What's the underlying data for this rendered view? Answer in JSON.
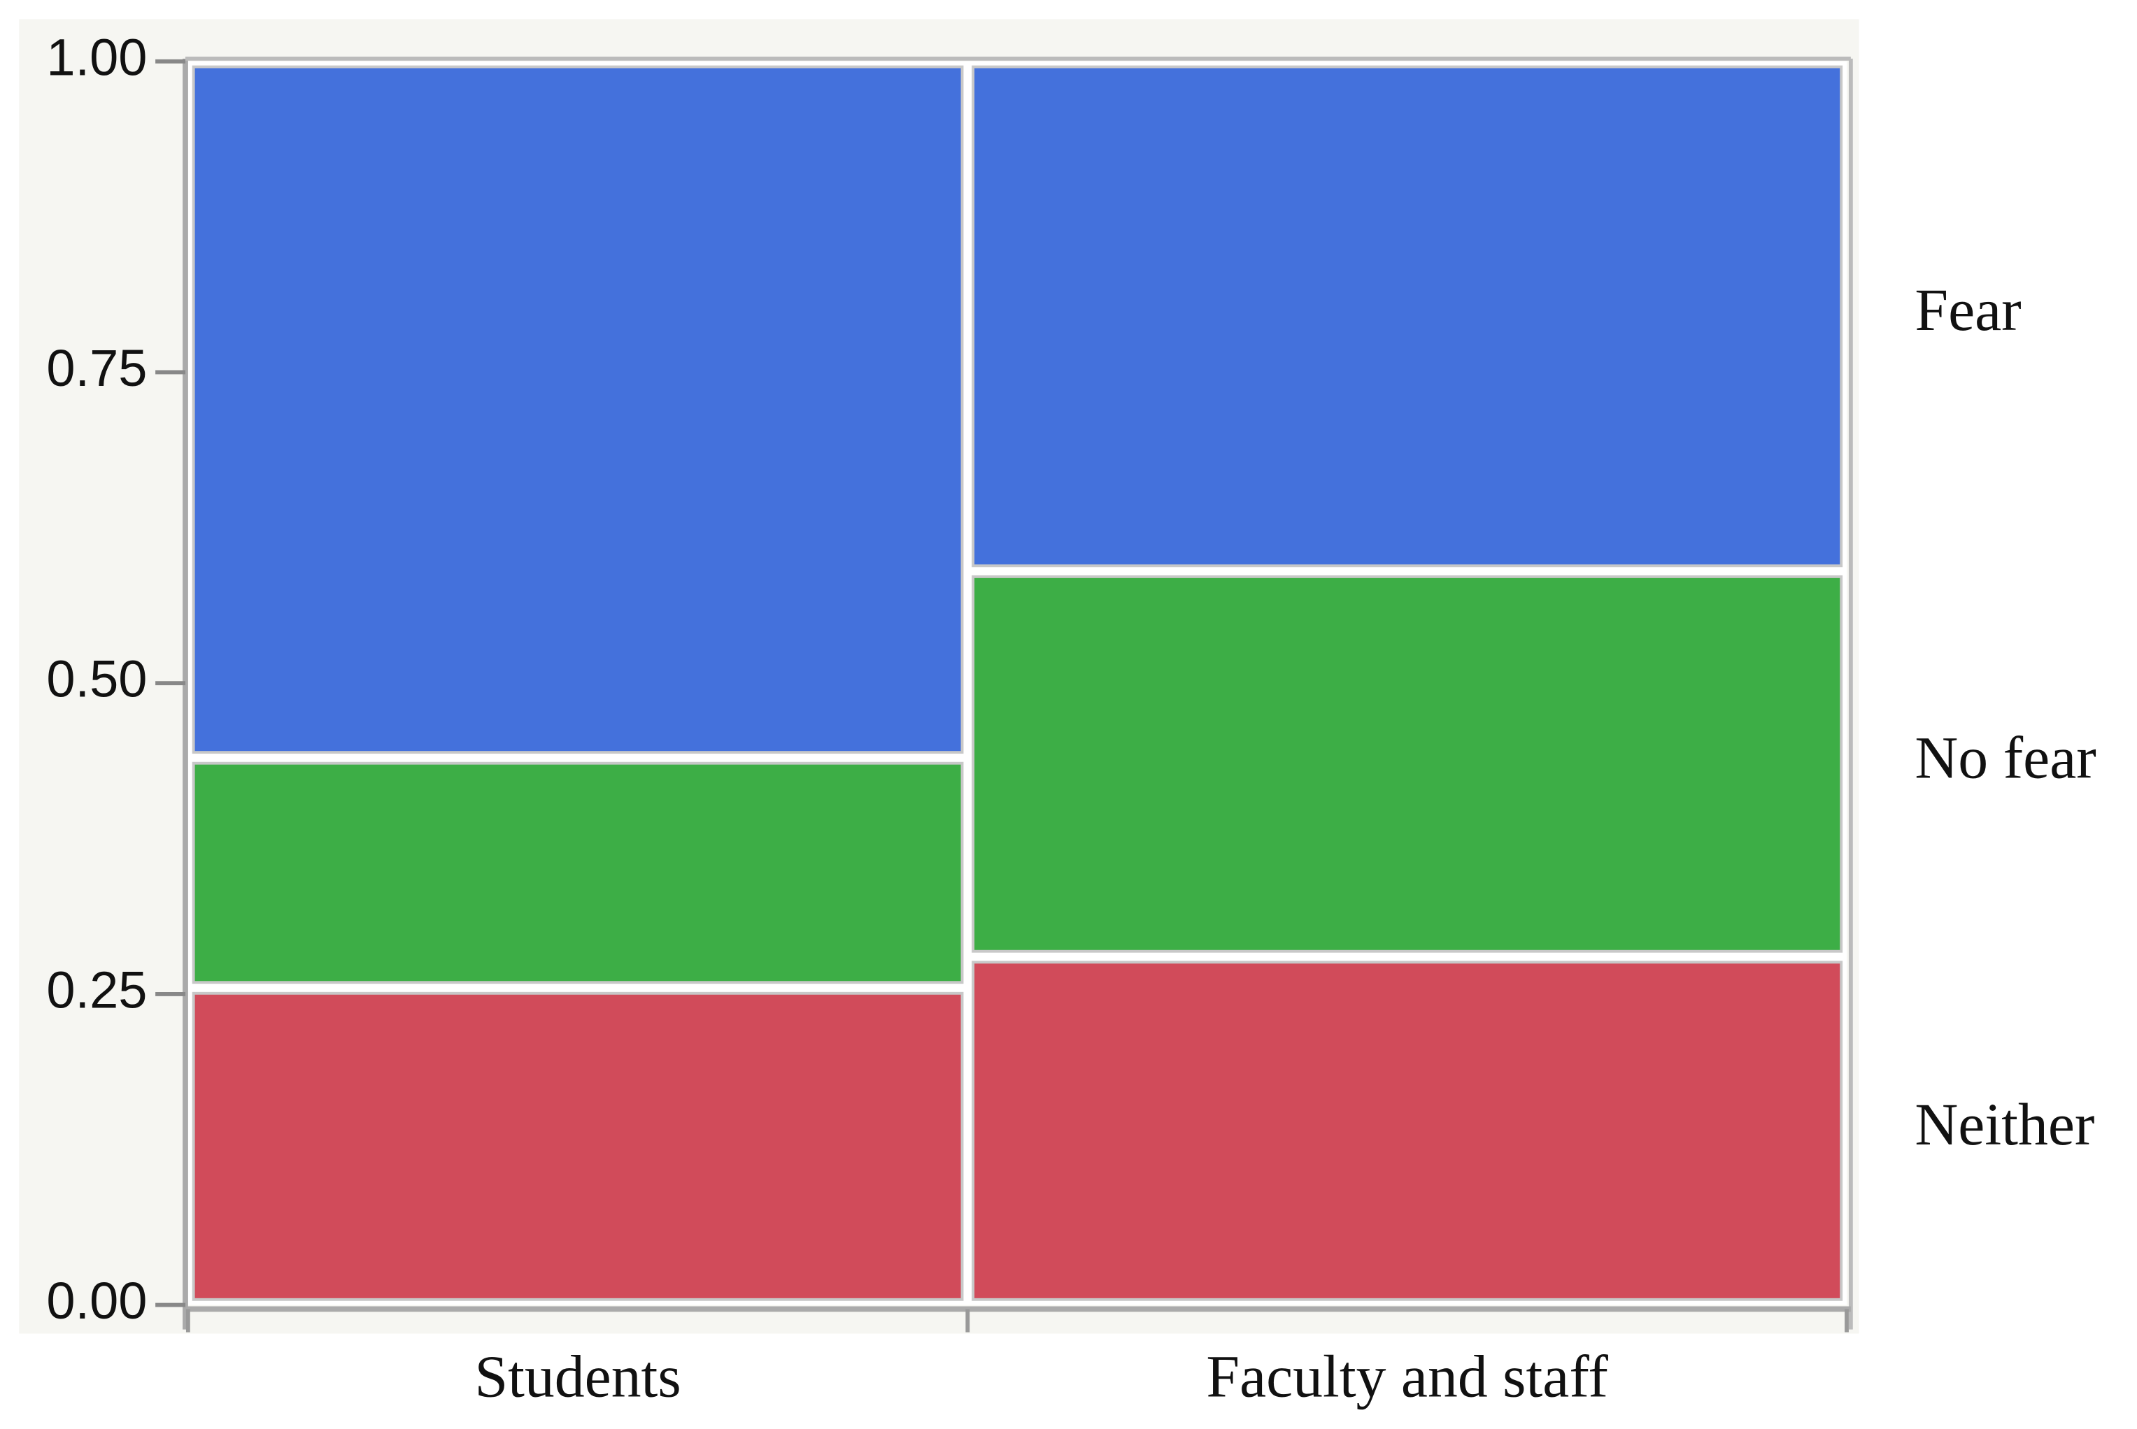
{
  "chart_data": {
    "type": "mosaic",
    "categories": [
      "Students",
      "Faculty and staff"
    ],
    "column_shares": [
      0.47,
      0.53
    ],
    "series": [
      {
        "name": "Neither",
        "color": "#d14b5a",
        "values": [
          0.255,
          0.28
        ]
      },
      {
        "name": "No fear",
        "color": "#3dae46",
        "values": [
          0.185,
          0.31
        ]
      },
      {
        "name": "Fear",
        "color": "#4471dc",
        "values": [
          0.56,
          0.41
        ]
      }
    ],
    "ylim": [
      0,
      1
    ],
    "yticks": [
      {
        "value": 0,
        "label": "0.00"
      },
      {
        "value": 0.25,
        "label": "0.25"
      },
      {
        "value": 0.5,
        "label": "0.50"
      },
      {
        "value": 0.75,
        "label": "0.75"
      },
      {
        "value": 1,
        "label": "1.00"
      }
    ]
  }
}
